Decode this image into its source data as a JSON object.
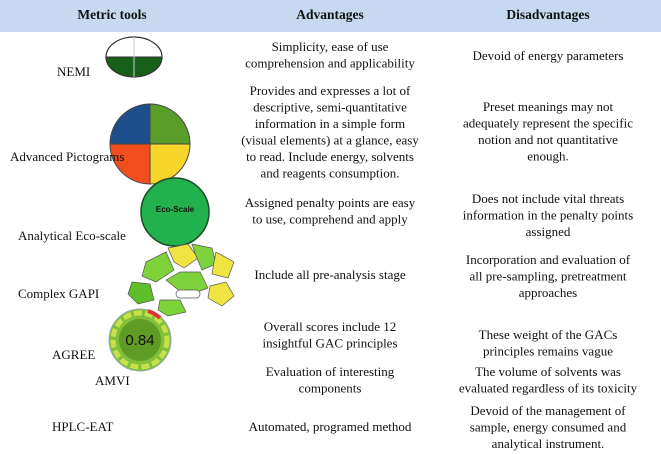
{
  "table": {
    "header": [
      "Metric tools",
      "Advantages",
      "Disadvantages"
    ],
    "rows": [
      {
        "tool": "NEMI",
        "advantages": [
          "Simplicity, ease of use",
          "comprehension and applicability"
        ],
        "disadvantages": [
          "Devoid of energy parameters"
        ]
      },
      {
        "tool": "Advanced Pictograms",
        "advantages": [
          "Provides and expresses a lot of",
          "descriptive, semi-quantitative",
          "information in a simple form",
          "(visual elements) at a glance, easy",
          "to read. Include energy, solvents",
          "and reagents consumption."
        ],
        "disadvantages": [
          "Preset meanings may not",
          "adequately represent the specific",
          "notion and not quantitative",
          "enough."
        ]
      },
      {
        "tool": "Analytical Eco-scale",
        "icon_text": "Eco-Scale",
        "advantages": [
          "Assigned penalty points are easy",
          "to use, comprehend and apply"
        ],
        "disadvantages": [
          "Does not include vital threats",
          "information in the penalty points",
          "assigned"
        ]
      },
      {
        "tool": "Complex GAPI",
        "advantages": [
          "Include all pre-analysis stage"
        ],
        "disadvantages": [
          "Incorporation and evaluation of",
          "all pre-sampling, pretreatment",
          "approaches"
        ]
      },
      {
        "tool": "AGREE",
        "icon_text": "0.84",
        "advantages": [
          "Overall scores include 12",
          "insightful GAC principles"
        ],
        "disadvantages": [
          "These weight of the GACs",
          "principles remains vague"
        ]
      },
      {
        "tool": "AMVI",
        "advantages": [
          "Evaluation of interesting",
          "components"
        ],
        "disadvantages": [
          "The volume of solvents was",
          "evaluated regardless of its toxicity"
        ]
      },
      {
        "tool": "HPLC-EAT",
        "advantages": [
          "Automated, programed method"
        ],
        "disadvantages": [
          "Devoid of the management of",
          "sample, energy consumed and",
          "analytical instrument."
        ]
      }
    ]
  }
}
